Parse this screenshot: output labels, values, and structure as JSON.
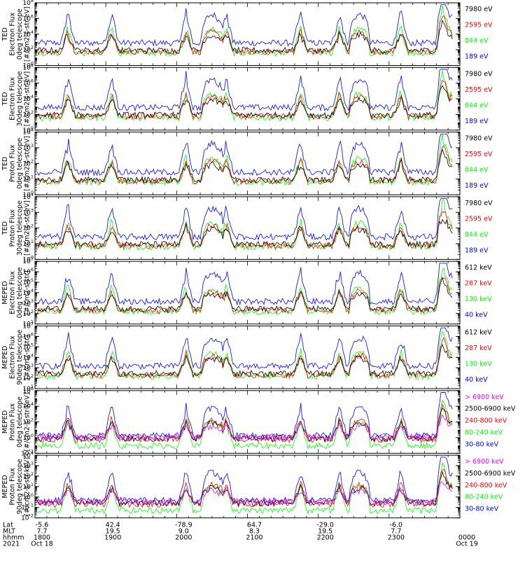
{
  "chart_data": {
    "type": "line",
    "year": "2021",
    "x_range_minutes": [
      0,
      360
    ],
    "hour_ticks": [
      "1800",
      "1900",
      "2000",
      "2100",
      "2200",
      "2300",
      "0000"
    ],
    "date_labels": [
      {
        "text": "Oct 18",
        "minute": 0
      },
      {
        "text": "Oct 19",
        "minute": 360
      }
    ],
    "footer_row_labels": [
      "Lat",
      "MLT",
      "hhmm",
      "2021"
    ],
    "footer_ticks": [
      {
        "minute": 0,
        "lat": "-5.6",
        "mlt": "7.7"
      },
      {
        "minute": 60,
        "lat": "42.4",
        "mlt": "19.5"
      },
      {
        "minute": 120,
        "lat": "-78.9",
        "mlt": "9.0"
      },
      {
        "minute": 180,
        "lat": "64.7",
        "mlt": "8.3"
      },
      {
        "minute": 240,
        "lat": "-29.0",
        "mlt": "19.5"
      },
      {
        "minute": 300,
        "lat": "-6.0",
        "mlt": "7.7"
      }
    ],
    "series_colors": {
      "black": "#000000",
      "red": "#ff0000",
      "green": "#00ff00",
      "blue": "#0000ff",
      "magenta": "#ff00ff"
    },
    "panels": [
      {
        "ylabel": [
          "TED",
          "Electron Flux",
          "0deg telescope",
          "[#/cm2-s-str-eV]"
        ],
        "y_exponents": [
          0,
          2,
          4,
          6,
          8
        ],
        "legend": [
          {
            "label": "7980 eV",
            "color": "black"
          },
          {
            "label": "2595 eV",
            "color": "red"
          },
          {
            "label": "844 eV",
            "color": "green"
          },
          {
            "label": "189 eV",
            "color": "blue"
          }
        ]
      },
      {
        "ylabel": [
          "TED",
          "Electron Flux",
          "30deg telescope",
          "[#/cm2-s-str-eV]"
        ],
        "y_exponents": [
          0,
          2,
          4,
          6,
          8
        ],
        "legend": [
          {
            "label": "7980 eV",
            "color": "black"
          },
          {
            "label": "2595 eV",
            "color": "red"
          },
          {
            "label": "844 eV",
            "color": "green"
          },
          {
            "label": "189 eV",
            "color": "blue"
          }
        ]
      },
      {
        "ylabel": [
          "TED",
          "Proton Flux",
          "0deg telescope",
          "[#/cm2-s-str-eV]"
        ],
        "y_exponents": [
          0,
          1,
          2,
          3,
          4
        ],
        "legend": [
          {
            "label": "7980 eV",
            "color": "black"
          },
          {
            "label": "2595 eV",
            "color": "red"
          },
          {
            "label": "844 eV",
            "color": "green"
          },
          {
            "label": "189 eV",
            "color": "blue"
          }
        ]
      },
      {
        "ylabel": [
          "TED",
          "Proton Flux",
          "30deg telescope",
          "[#/cm2-s-str-eV]"
        ],
        "y_exponents": [
          0,
          1,
          2,
          3,
          4
        ],
        "legend": [
          {
            "label": "7980 eV",
            "color": "black"
          },
          {
            "label": "2595 eV",
            "color": "red"
          },
          {
            "label": "844 eV",
            "color": "green"
          },
          {
            "label": "189 eV",
            "color": "blue"
          }
        ]
      },
      {
        "ylabel": [
          "MEPED",
          "Electron Flux",
          "0deg telescope",
          "[#/cm2-s-str]"
        ],
        "y_exponents": [
          1,
          2,
          3,
          4,
          5,
          6,
          7
        ],
        "legend": [
          {
            "label": "612 keV",
            "color": "black"
          },
          {
            "label": "287 keV",
            "color": "red"
          },
          {
            "label": "130 keV",
            "color": "green"
          },
          {
            "label": "40 keV",
            "color": "blue"
          }
        ]
      },
      {
        "ylabel": [
          "MEPED",
          "Electron Flux",
          "90deg telescope",
          "[#/cm2-s-str]"
        ],
        "y_exponents": [
          1,
          2,
          3,
          4,
          5,
          6,
          7
        ],
        "legend": [
          {
            "label": "612 keV",
            "color": "black"
          },
          {
            "label": "287 keV",
            "color": "red"
          },
          {
            "label": "130 keV",
            "color": "green"
          },
          {
            "label": "40 keV",
            "color": "blue"
          }
        ]
      },
      {
        "ylabel": [
          "MEPED",
          "Proton Flux",
          "0deg telescope",
          "[#/cm2-s-str-keV]"
        ],
        "y_exponents": [
          -2,
          0,
          2,
          4,
          6
        ],
        "legend": [
          {
            "label": "> 6900 keV",
            "color": "magenta"
          },
          {
            "label": "2500-6900 keV",
            "color": "black"
          },
          {
            "label": "240-800 keV",
            "color": "red"
          },
          {
            "label": "80-240 keV",
            "color": "green"
          },
          {
            "label": "30-80 keV",
            "color": "blue"
          }
        ]
      },
      {
        "ylabel": [
          "MEPED",
          "Proton Flux",
          "90deg telescope",
          "[#/cm2-s-str-keV]"
        ],
        "y_exponents": [
          -2,
          -1,
          0,
          1,
          2,
          3,
          4
        ],
        "legend": [
          {
            "label": "> 6900 keV",
            "color": "magenta"
          },
          {
            "label": "2500-6900 keV",
            "color": "black"
          },
          {
            "label": "240-800 keV",
            "color": "red"
          },
          {
            "label": "80-240 keV",
            "color": "green"
          },
          {
            "label": "30-80 keV",
            "color": "blue"
          }
        ]
      }
    ]
  }
}
